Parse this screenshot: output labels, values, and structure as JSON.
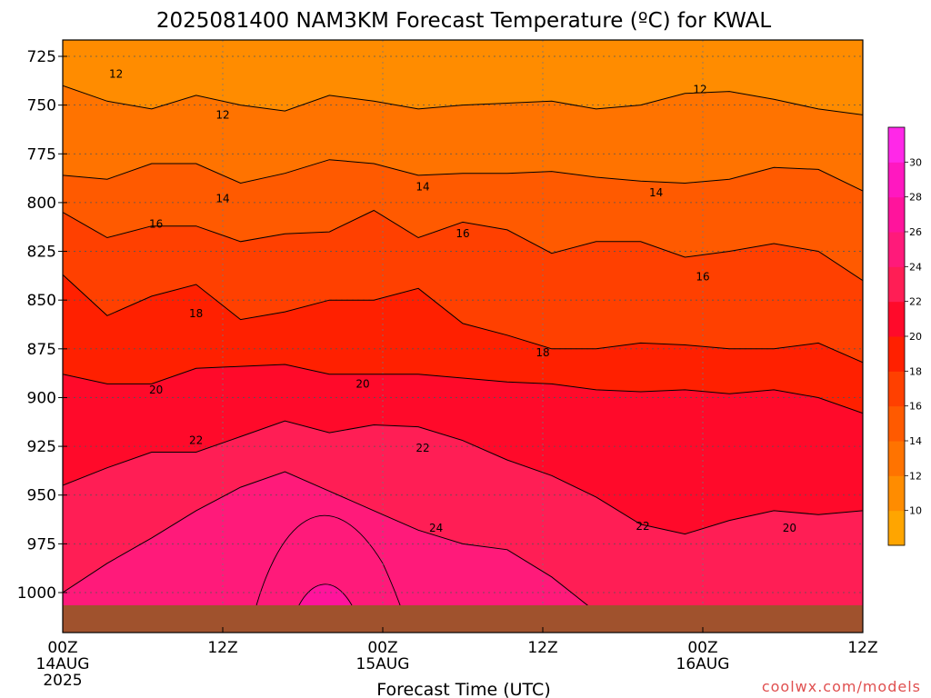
{
  "chart_data": {
    "type": "heatmap",
    "title": "2025081400 NAM3KM Forecast Temperature (ºC) for KWAL",
    "xlabel": "Forecast Time (UTC)",
    "ylabel": "",
    "credit": "coolwx.com/models",
    "x_ticks": [
      {
        "hour": 0,
        "label": "00Z",
        "date": "14AUG",
        "year": "2025"
      },
      {
        "hour": 12,
        "label": "12Z",
        "date": "",
        "year": ""
      },
      {
        "hour": 24,
        "label": "00Z",
        "date": "15AUG",
        "year": ""
      },
      {
        "hour": 36,
        "label": "12Z",
        "date": "",
        "year": ""
      },
      {
        "hour": 48,
        "label": "00Z",
        "date": "16AUG",
        "year": ""
      },
      {
        "hour": 60,
        "label": "12Z",
        "date": "",
        "year": ""
      }
    ],
    "xlim": [
      0,
      60
    ],
    "y_ticks": [
      725,
      750,
      775,
      800,
      825,
      850,
      875,
      900,
      925,
      950,
      975,
      1000
    ],
    "y_label_texts": [
      "725",
      "750",
      "775",
      "800",
      "825",
      "850",
      "875",
      "900",
      "925",
      "950",
      "975",
      "1000"
    ],
    "ylim": [
      1016,
      715
    ],
    "grid": true,
    "colorbar": {
      "levels": [
        10,
        12,
        14,
        16,
        18,
        20,
        22,
        24,
        26,
        28,
        30
      ],
      "label_texts": [
        "10",
        "12",
        "14",
        "16",
        "18",
        "20",
        "22",
        "24",
        "26",
        "28",
        "30"
      ],
      "colors": [
        "#ffa500",
        "#ff8c00",
        "#ff7300",
        "#ff5a00",
        "#ff4000",
        "#ff2000",
        "#ff0a2a",
        "#ff1e55",
        "#ff1a7a",
        "#ff149c",
        "#ff18c0",
        "#ff28e8"
      ]
    },
    "isotherms": [
      {
        "value": 12,
        "label": "12",
        "pressure": [
          740,
          748,
          752,
          745,
          750,
          753,
          745,
          748,
          752,
          750,
          749,
          748,
          752,
          750,
          744,
          743,
          747,
          752,
          755
        ]
      },
      {
        "value": 14,
        "label": "14",
        "pressure": [
          786,
          788,
          780,
          780,
          790,
          785,
          778,
          780,
          786,
          785,
          785,
          784,
          787,
          789,
          790,
          788,
          782,
          783,
          794
        ]
      },
      {
        "value": 16,
        "label": "16",
        "pressure": [
          805,
          818,
          812,
          812,
          820,
          816,
          815,
          804,
          818,
          810,
          814,
          826,
          820,
          820,
          828,
          825,
          821,
          825,
          840
        ]
      },
      {
        "value": 18,
        "label": "18",
        "pressure": [
          837,
          858,
          848,
          842,
          860,
          856,
          850,
          850,
          844,
          862,
          868,
          875,
          875,
          872,
          873,
          875,
          875,
          872,
          882
        ]
      },
      {
        "value": 20,
        "label": "20",
        "pressure": [
          888,
          893,
          893,
          885,
          884,
          883,
          888,
          888,
          888,
          890,
          892,
          893,
          896,
          897,
          896,
          898,
          896,
          900,
          908
        ]
      },
      {
        "value": 22,
        "label": "22",
        "pressure": [
          945,
          936,
          928,
          928,
          920,
          912,
          918,
          914,
          915,
          922,
          932,
          940,
          951,
          965,
          970,
          963,
          958,
          960,
          958
        ]
      },
      {
        "value": 24,
        "label": "24",
        "pressure": [
          1000,
          985,
          972,
          958,
          946,
          938,
          948,
          958,
          968,
          975,
          978,
          992,
          1010,
          1016,
          1016,
          1016,
          1016,
          1016,
          1016
        ]
      }
    ],
    "contour_labels": [
      {
        "hour": 4.0,
        "pressure": 734,
        "text": "12"
      },
      {
        "hour": 12.0,
        "pressure": 755,
        "text": "12"
      },
      {
        "hour": 47.8,
        "pressure": 742,
        "text": "12"
      },
      {
        "hour": 12.0,
        "pressure": 798,
        "text": "14"
      },
      {
        "hour": 27.0,
        "pressure": 792,
        "text": "14"
      },
      {
        "hour": 44.5,
        "pressure": 795,
        "text": "14"
      },
      {
        "hour": 7.0,
        "pressure": 811,
        "text": "16"
      },
      {
        "hour": 30.0,
        "pressure": 816,
        "text": "16"
      },
      {
        "hour": 48.0,
        "pressure": 838,
        "text": "16"
      },
      {
        "hour": 10.0,
        "pressure": 857,
        "text": "18"
      },
      {
        "hour": 36.0,
        "pressure": 877,
        "text": "18"
      },
      {
        "hour": 7.0,
        "pressure": 896,
        "text": "20"
      },
      {
        "hour": 22.5,
        "pressure": 893,
        "text": "20"
      },
      {
        "hour": 54.5,
        "pressure": 967,
        "text": "20"
      },
      {
        "hour": 10.0,
        "pressure": 922,
        "text": "22"
      },
      {
        "hour": 27.0,
        "pressure": 926,
        "text": "22"
      },
      {
        "hour": 43.5,
        "pressure": 966,
        "text": "22"
      },
      {
        "hour": 28.0,
        "pressure": 967,
        "text": "24"
      }
    ]
  }
}
